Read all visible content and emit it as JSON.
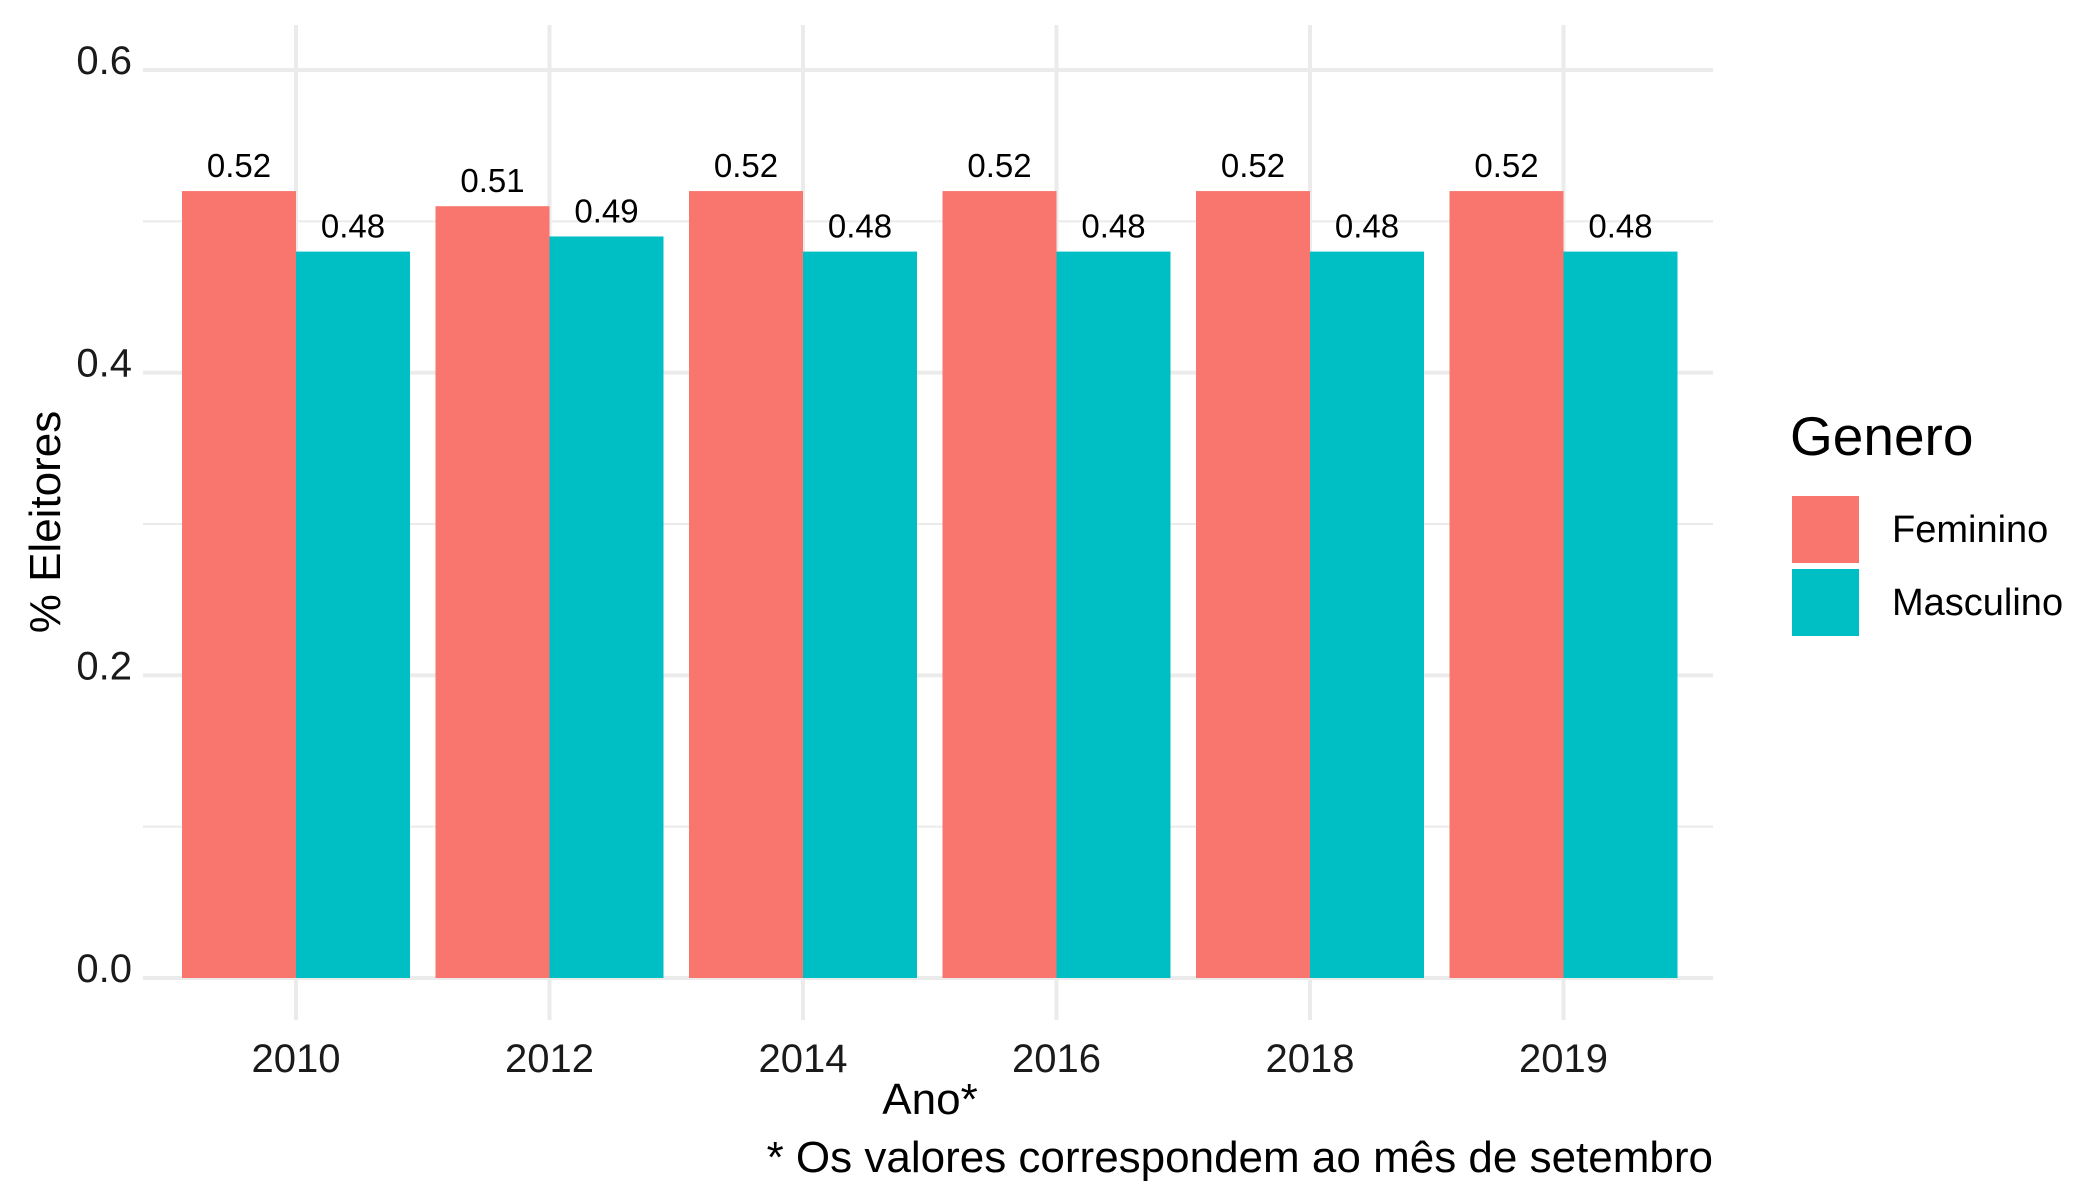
{
  "chart_data": {
    "type": "bar",
    "categories": [
      "2010",
      "2012",
      "2014",
      "2016",
      "2018",
      "2019"
    ],
    "series": [
      {
        "name": "Feminino",
        "color": "#F8766D",
        "values": [
          0.52,
          0.51,
          0.52,
          0.52,
          0.52,
          0.52
        ]
      },
      {
        "name": "Masculino",
        "color": "#00BFC4",
        "values": [
          0.48,
          0.49,
          0.48,
          0.48,
          0.48,
          0.48
        ]
      }
    ],
    "data_labels": [
      [
        "0.52",
        "0.51",
        "0.52",
        "0.52",
        "0.52",
        "0.52"
      ],
      [
        "0.48",
        "0.49",
        "0.48",
        "0.48",
        "0.48",
        "0.48"
      ]
    ],
    "xlabel": "Ano*",
    "ylabel": "% Eleitores",
    "caption": "* Os valores correspondem ao mês de setembro",
    "legend_title": "Genero",
    "legend_position": "right",
    "ylim": [
      0,
      0.6
    ],
    "yticks": [
      0.0,
      0.2,
      0.4,
      0.6
    ],
    "ytick_labels": [
      "0.0",
      "0.2",
      "0.4",
      "0.6"
    ],
    "grid": true,
    "grid_color": "#EBEBEB"
  }
}
